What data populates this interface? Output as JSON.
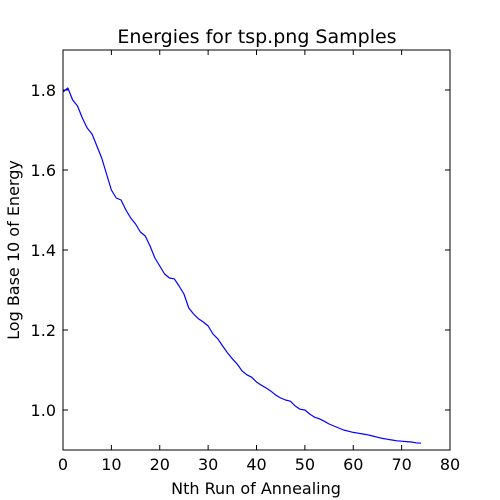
{
  "chart_data": {
    "type": "line",
    "title": "Energies for tsp.png Samples",
    "xlabel": "Nth Run of Annealing",
    "ylabel": "Log Base 10 of Energy",
    "xlim": [
      0,
      80
    ],
    "ylim": [
      0.9,
      1.9
    ],
    "xticks": [
      0,
      10,
      20,
      30,
      40,
      50,
      60,
      70,
      80
    ],
    "yticks": [
      1.0,
      1.2,
      1.4,
      1.6,
      1.8
    ],
    "x_tick_labels": [
      "0",
      "10",
      "20",
      "30",
      "40",
      "50",
      "60",
      "70",
      "80"
    ],
    "y_tick_labels": [
      "1.0",
      "1.2",
      "1.4",
      "1.6",
      "1.8"
    ],
    "grid": false,
    "series": [
      {
        "color": "#0000ff",
        "x": [
          0,
          1,
          2,
          3,
          4,
          5,
          6,
          7,
          8,
          9,
          10,
          11,
          12,
          13,
          14,
          15,
          16,
          17,
          18,
          19,
          20,
          21,
          22,
          23,
          24,
          25,
          26,
          27,
          28,
          29,
          30,
          31,
          32,
          33,
          34,
          35,
          36,
          37,
          38,
          39,
          40,
          41,
          42,
          43,
          44,
          45,
          46,
          47,
          48,
          49,
          50,
          51,
          52,
          53,
          54,
          55,
          56,
          57,
          58,
          59,
          60,
          61,
          62,
          63,
          64,
          65,
          66,
          67,
          68,
          69,
          70,
          71,
          72,
          73,
          74
        ],
        "y": [
          1.795,
          1.805,
          1.775,
          1.76,
          1.73,
          1.705,
          1.69,
          1.66,
          1.63,
          1.59,
          1.55,
          1.53,
          1.525,
          1.5,
          1.48,
          1.465,
          1.445,
          1.435,
          1.41,
          1.38,
          1.36,
          1.34,
          1.33,
          1.328,
          1.31,
          1.29,
          1.255,
          1.24,
          1.228,
          1.22,
          1.21,
          1.19,
          1.178,
          1.16,
          1.143,
          1.128,
          1.115,
          1.098,
          1.088,
          1.082,
          1.07,
          1.062,
          1.055,
          1.047,
          1.037,
          1.03,
          1.025,
          1.022,
          1.01,
          1.002,
          1.0,
          0.99,
          0.982,
          0.978,
          0.972,
          0.965,
          0.96,
          0.955,
          0.95,
          0.947,
          0.944,
          0.942,
          0.94,
          0.938,
          0.935,
          0.932,
          0.929,
          0.927,
          0.925,
          0.923,
          0.922,
          0.921,
          0.92,
          0.918,
          0.917
        ]
      }
    ]
  }
}
